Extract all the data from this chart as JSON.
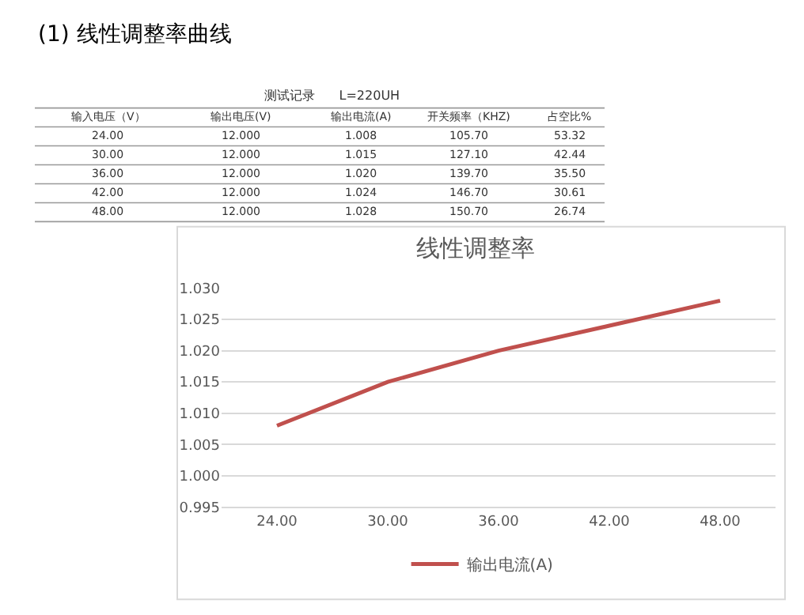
{
  "chart_data": {
    "type": "line",
    "title": "线性调整率",
    "categories": [
      "24.00",
      "30.00",
      "36.00",
      "42.00",
      "48.00"
    ],
    "series": [
      {
        "name": "输出电流(A)",
        "color": "#c0504d",
        "values": [
          1.008,
          1.015,
          1.02,
          1.024,
          1.028
        ]
      }
    ],
    "ylim": [
      0.995,
      1.03
    ],
    "yticks": [
      {
        "value": 0.995,
        "label": "0.995"
      },
      {
        "value": 1.0,
        "label": "1.000"
      },
      {
        "value": 1.005,
        "label": "1.005"
      },
      {
        "value": 1.01,
        "label": "1.010"
      },
      {
        "value": 1.015,
        "label": "1.015"
      },
      {
        "value": 1.02,
        "label": "1.020"
      },
      {
        "value": 1.025,
        "label": "1.025"
      },
      {
        "value": 1.03,
        "label": "1.030"
      }
    ],
    "grid": "y",
    "legend": "bottom",
    "marker": "none",
    "line_style": "solid",
    "annotations": [
      "(1) 线性调整率曲线",
      "测试记录      L=220UH",
      "输入电压（V）",
      "输出电压(V)",
      "输出电流(A)",
      "开关频率（KHZ)",
      "占空比%",
      "24.00",
      "12.000",
      "1.008",
      "105.70",
      "53.32",
      "30.00",
      "12.000",
      "1.015",
      "127.10",
      "42.44",
      "36.00",
      "12.000",
      "1.020",
      "139.70",
      "35.50",
      "42.00",
      "12.000",
      "1.024",
      "146.70",
      "30.61",
      "48.00",
      "12.000",
      "1.028",
      "150.70",
      "26.74"
    ]
  }
}
